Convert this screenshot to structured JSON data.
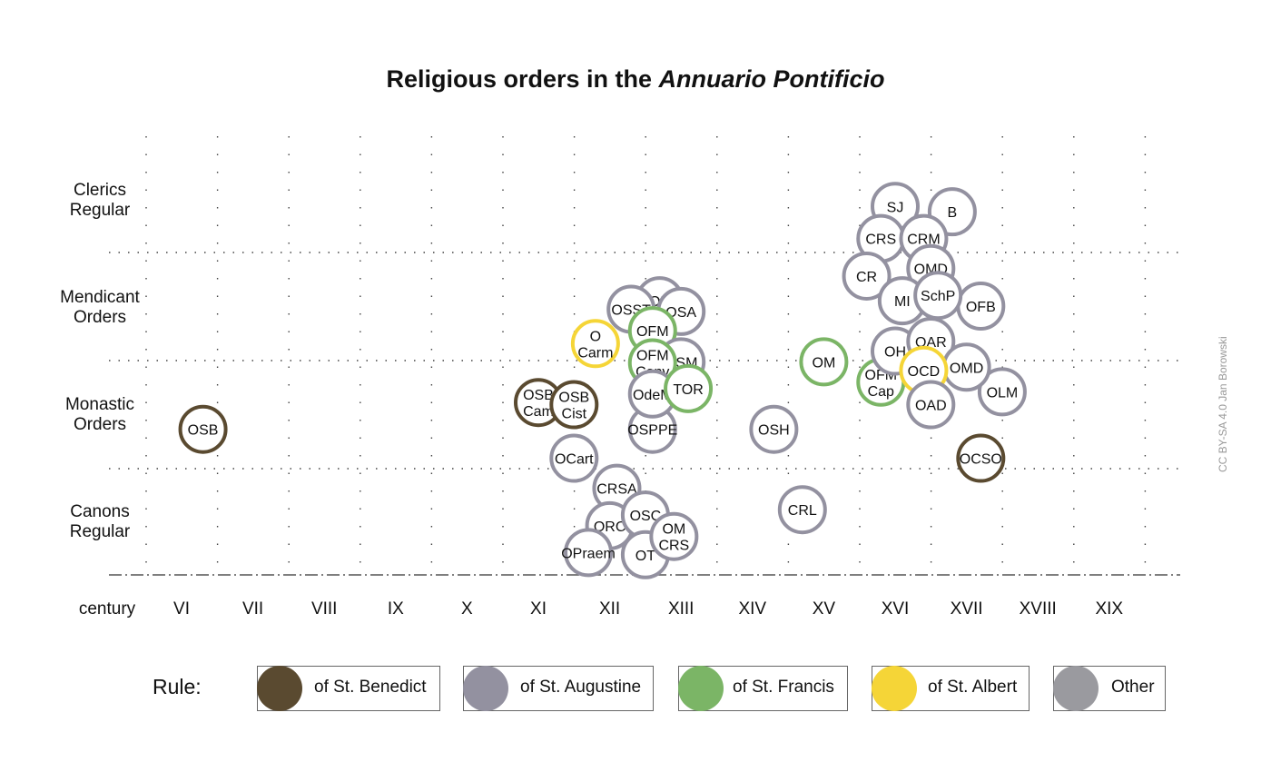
{
  "title": {
    "main": "Religious orders in the ",
    "italic": "Annuario Pontificio"
  },
  "credit": "CC BY-SA 4.0 Jan Borowski",
  "row_labels": [
    {
      "line1": "Clerics",
      "line2": "Regular"
    },
    {
      "line1": "Mendicant",
      "line2": "Orders"
    },
    {
      "line1": "Monastic",
      "line2": "Orders"
    },
    {
      "line1": "Canons",
      "line2": "Regular"
    }
  ],
  "legend": {
    "title": "Rule:",
    "items": [
      {
        "label": "of St. Benedict",
        "color": "#5a4a30",
        "border": "#5a4a30"
      },
      {
        "label": "of St. Augustine",
        "color": "#9391a0",
        "border": "#9391a0"
      },
      {
        "label": "of St. Francis",
        "color": "#7bb566",
        "border": "#7bb566"
      },
      {
        "label": "of St. Albert",
        "color": "#f5d537",
        "border": "#f5d537"
      },
      {
        "label": "Other",
        "color": "#9a9a9f",
        "border": "#9a9a9f"
      }
    ]
  },
  "chart_data": {
    "type": "scatter",
    "title": "Religious orders in the Annuario Pontificio",
    "xlabel": "century",
    "x_ticks": [
      "VI",
      "VII",
      "VIII",
      "IX",
      "X",
      "XI",
      "XII",
      "XIII",
      "XIV",
      "XV",
      "XVI",
      "XVII",
      "XVIII",
      "XIX"
    ],
    "y_categories": [
      "Clerics Regular",
      "Mendicant Orders",
      "Monastic Orders",
      "Canons Regular"
    ],
    "grid": true,
    "colors": {
      "benedict": "#5a4a30",
      "augustine": "#9391a0",
      "francis": "#7bb566",
      "albert": "#f5d537",
      "other": "#9a9a9f"
    },
    "points": [
      {
        "label": "OSB",
        "x": 6.3,
        "y": 2.35,
        "rule": "benedict"
      },
      {
        "label": "OSB\nCam",
        "x": 11.0,
        "y": 2.6,
        "rule": "benedict"
      },
      {
        "label": "OSB\nCist",
        "x": 11.5,
        "y": 2.58,
        "rule": "benedict"
      },
      {
        "label": "OCart",
        "x": 11.5,
        "y": 2.08,
        "rule": "augustine"
      },
      {
        "label": "OSPPE",
        "x": 12.6,
        "y": 2.35,
        "rule": "augustine"
      },
      {
        "label": "OSH",
        "x": 14.3,
        "y": 2.35,
        "rule": "augustine"
      },
      {
        "label": "OLM",
        "x": 17.5,
        "y": 2.7,
        "rule": "augustine"
      },
      {
        "label": "OCSO",
        "x": 17.2,
        "y": 2.08,
        "rule": "benedict"
      },
      {
        "label": "CRSA",
        "x": 12.1,
        "y": 1.8,
        "rule": "augustine"
      },
      {
        "label": "ORC",
        "x": 12.0,
        "y": 1.45,
        "rule": "augustine"
      },
      {
        "label": "OSC",
        "x": 12.5,
        "y": 1.55,
        "rule": "augustine"
      },
      {
        "label": "OPraem",
        "x": 11.7,
        "y": 1.2,
        "rule": "augustine"
      },
      {
        "label": "OT",
        "x": 12.5,
        "y": 1.18,
        "rule": "augustine"
      },
      {
        "label": "OM\nCRS",
        "x": 12.9,
        "y": 1.35,
        "rule": "augustine"
      },
      {
        "label": "CRL",
        "x": 14.7,
        "y": 1.6,
        "rule": "augustine"
      },
      {
        "label": "OP",
        "x": 12.7,
        "y": 3.55,
        "rule": "augustine"
      },
      {
        "label": "OSA",
        "x": 13.0,
        "y": 3.45,
        "rule": "augustine"
      },
      {
        "label": "OSST",
        "x": 12.3,
        "y": 3.47,
        "rule": "augustine"
      },
      {
        "label": "O\nCarm",
        "x": 11.8,
        "y": 3.15,
        "rule": "albert"
      },
      {
        "label": "OFM",
        "x": 12.6,
        "y": 3.27,
        "rule": "francis"
      },
      {
        "label": "OSM",
        "x": 13.0,
        "y": 2.98,
        "rule": "augustine"
      },
      {
        "label": "OFM\nConv",
        "x": 12.6,
        "y": 2.97,
        "rule": "francis"
      },
      {
        "label": "OdeM",
        "x": 12.6,
        "y": 2.68,
        "rule": "augustine"
      },
      {
        "label": "TOR",
        "x": 13.1,
        "y": 2.73,
        "rule": "francis"
      },
      {
        "label": "OM",
        "x": 15.0,
        "y": 2.98,
        "rule": "francis"
      },
      {
        "label": "OFM\nCap",
        "x": 15.8,
        "y": 2.79,
        "rule": "francis"
      },
      {
        "label": "OH",
        "x": 16.0,
        "y": 3.08,
        "rule": "augustine"
      },
      {
        "label": "OAR",
        "x": 16.5,
        "y": 3.17,
        "rule": "augustine"
      },
      {
        "label": "OFB",
        "x": 17.2,
        "y": 3.5,
        "rule": "augustine"
      },
      {
        "label": "OMD",
        "x": 17.0,
        "y": 2.93,
        "rule": "augustine"
      },
      {
        "label": "OCD",
        "x": 16.4,
        "y": 2.9,
        "rule": "albert"
      },
      {
        "label": "OAD",
        "x": 16.5,
        "y": 2.58,
        "rule": "augustine"
      },
      {
        "label": "SJ",
        "x": 16.0,
        "y": 4.43,
        "rule": "augustine"
      },
      {
        "label": "B",
        "x": 16.8,
        "y": 4.38,
        "rule": "augustine"
      },
      {
        "label": "CRS",
        "x": 15.8,
        "y": 4.13,
        "rule": "augustine"
      },
      {
        "label": "CRM",
        "x": 16.4,
        "y": 4.13,
        "rule": "augustine"
      },
      {
        "label": "OMD",
        "x": 16.5,
        "y": 3.85,
        "rule": "augustine"
      },
      {
        "label": "CR",
        "x": 15.6,
        "y": 3.78,
        "rule": "augustine"
      },
      {
        "label": "MI",
        "x": 16.1,
        "y": 3.55,
        "rule": "augustine"
      },
      {
        "label": "SchP",
        "x": 16.6,
        "y": 3.6,
        "rule": "augustine"
      }
    ]
  }
}
